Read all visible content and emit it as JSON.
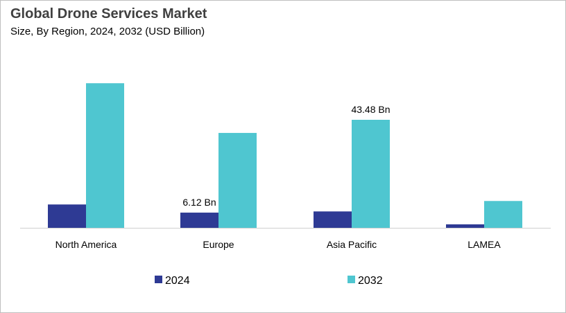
{
  "chart_data": {
    "type": "bar",
    "title": "Global Drone Services Market",
    "subtitle": "Size, By Region, 2024, 2032 (USD Billion)",
    "categories": [
      "North America",
      "Europe",
      "Asia Pacific",
      "LAMEA"
    ],
    "series": [
      {
        "name": "2024",
        "color": "#2e3a94",
        "values": [
          9.4,
          6.12,
          6.6,
          1.4
        ]
      },
      {
        "name": "2032",
        "color": "#4fc6d0",
        "values": [
          58.2,
          38.2,
          43.48,
          10.8
        ]
      }
    ],
    "data_labels": [
      {
        "series": 0,
        "category": 1,
        "text": "6.12 Bn"
      },
      {
        "series": 1,
        "category": 2,
        "text": "43.48 Bn"
      }
    ],
    "xlabel": "",
    "ylabel": "",
    "ylim": [
      0,
      60
    ],
    "grid": false,
    "legend": "bottom"
  }
}
